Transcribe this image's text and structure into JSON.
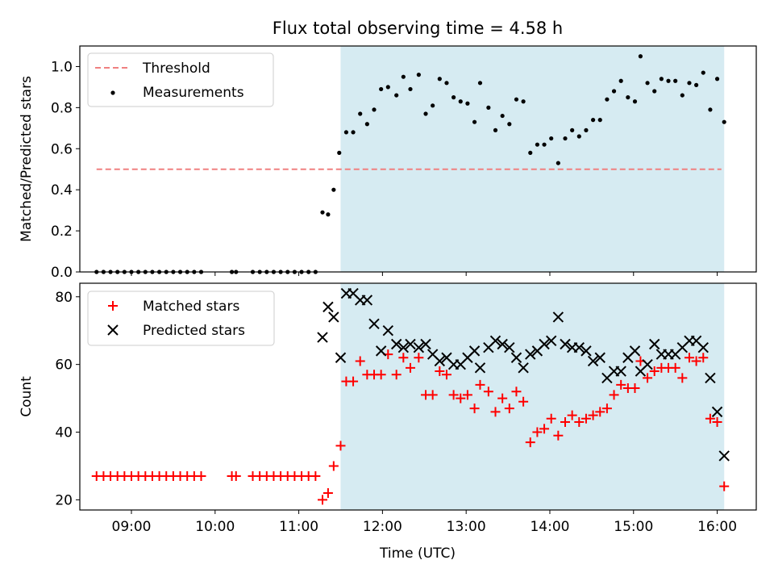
{
  "chart_data": {
    "title": "Flux total observing time = 4.58 h",
    "observing_band": {
      "start": "11:30",
      "end": "16:05",
      "color": "#add8e6"
    },
    "x_axis": {
      "label": "Time (UTC)",
      "range": [
        "08:23",
        "16:28"
      ],
      "ticks": [
        "09:00",
        "10:00",
        "11:00",
        "12:00",
        "13:00",
        "14:00",
        "15:00",
        "16:00"
      ]
    },
    "panels": [
      {
        "type": "scatter",
        "ylabel": "Matched/Predicted stars",
        "ylim": [
          0,
          1.1
        ],
        "yticks": [
          "0.0",
          "0.2",
          "0.4",
          "0.6",
          "0.8",
          "1.0"
        ],
        "legend_position": "upper-left",
        "threshold": {
          "name": "Threshold",
          "value": 0.5,
          "x_from": "08:35",
          "x_to": "16:03",
          "color": "#f08080",
          "style": "dashed"
        },
        "series": [
          {
            "name": "Measurements",
            "marker": "dot",
            "color": "#000000",
            "points": [
              [
                "08:35",
                0
              ],
              [
                "08:40",
                0
              ],
              [
                "08:45",
                0
              ],
              [
                "08:50",
                0
              ],
              [
                "08:55",
                0
              ],
              [
                "09:00",
                0
              ],
              [
                "09:05",
                0
              ],
              [
                "09:10",
                0
              ],
              [
                "09:15",
                0
              ],
              [
                "09:20",
                0
              ],
              [
                "09:25",
                0
              ],
              [
                "09:30",
                0
              ],
              [
                "09:35",
                0
              ],
              [
                "09:40",
                0
              ],
              [
                "09:45",
                0
              ],
              [
                "09:50",
                0
              ],
              [
                "10:12",
                0
              ],
              [
                "10:15",
                0
              ],
              [
                "10:27",
                0
              ],
              [
                "10:32",
                0
              ],
              [
                "10:37",
                0
              ],
              [
                "10:42",
                0
              ],
              [
                "10:47",
                0
              ],
              [
                "10:52",
                0
              ],
              [
                "10:57",
                0
              ],
              [
                "11:02",
                0
              ],
              [
                "11:07",
                0
              ],
              [
                "11:12",
                0
              ],
              [
                "11:17",
                0.29
              ],
              [
                "11:21",
                0.28
              ],
              [
                "11:25",
                0.4
              ],
              [
                "11:29",
                0.58
              ],
              [
                "11:34",
                0.68
              ],
              [
                "11:39",
                0.68
              ],
              [
                "11:44",
                0.77
              ],
              [
                "11:49",
                0.72
              ],
              [
                "11:54",
                0.79
              ],
              [
                "11:59",
                0.89
              ],
              [
                "12:04",
                0.9
              ],
              [
                "12:10",
                0.86
              ],
              [
                "12:15",
                0.95
              ],
              [
                "12:20",
                0.89
              ],
              [
                "12:26",
                0.96
              ],
              [
                "12:31",
                0.77
              ],
              [
                "12:36",
                0.81
              ],
              [
                "12:41",
                0.94
              ],
              [
                "12:46",
                0.92
              ],
              [
                "12:51",
                0.85
              ],
              [
                "12:56",
                0.83
              ],
              [
                "13:01",
                0.82
              ],
              [
                "13:06",
                0.73
              ],
              [
                "13:10",
                0.92
              ],
              [
                "13:16",
                0.8
              ],
              [
                "13:21",
                0.69
              ],
              [
                "13:26",
                0.76
              ],
              [
                "13:31",
                0.72
              ],
              [
                "13:36",
                0.84
              ],
              [
                "13:41",
                0.83
              ],
              [
                "13:46",
                0.58
              ],
              [
                "13:51",
                0.62
              ],
              [
                "13:56",
                0.62
              ],
              [
                "14:01",
                0.65
              ],
              [
                "14:06",
                0.53
              ],
              [
                "14:11",
                0.65
              ],
              [
                "14:16",
                0.69
              ],
              [
                "14:21",
                0.66
              ],
              [
                "14:26",
                0.69
              ],
              [
                "14:31",
                0.74
              ],
              [
                "14:36",
                0.74
              ],
              [
                "14:41",
                0.84
              ],
              [
                "14:46",
                0.88
              ],
              [
                "14:51",
                0.93
              ],
              [
                "14:56",
                0.85
              ],
              [
                "15:01",
                0.83
              ],
              [
                "15:05",
                1.05
              ],
              [
                "15:10",
                0.92
              ],
              [
                "15:15",
                0.88
              ],
              [
                "15:20",
                0.94
              ],
              [
                "15:25",
                0.93
              ],
              [
                "15:30",
                0.93
              ],
              [
                "15:35",
                0.86
              ],
              [
                "15:40",
                0.92
              ],
              [
                "15:45",
                0.91
              ],
              [
                "15:50",
                0.97
              ],
              [
                "15:55",
                0.79
              ],
              [
                "16:00",
                0.94
              ],
              [
                "16:05",
                0.73
              ]
            ]
          }
        ]
      },
      {
        "type": "scatter",
        "ylabel": "Count",
        "ylim": [
          17,
          84
        ],
        "yticks": [
          "20",
          "40",
          "60",
          "80"
        ],
        "legend_position": "upper-left",
        "series": [
          {
            "name": "Matched stars",
            "marker": "plus",
            "color": "#ff0000",
            "points": [
              [
                "08:35",
                27
              ],
              [
                "08:40",
                27
              ],
              [
                "08:45",
                27
              ],
              [
                "08:50",
                27
              ],
              [
                "08:55",
                27
              ],
              [
                "09:00",
                27
              ],
              [
                "09:05",
                27
              ],
              [
                "09:10",
                27
              ],
              [
                "09:15",
                27
              ],
              [
                "09:20",
                27
              ],
              [
                "09:25",
                27
              ],
              [
                "09:30",
                27
              ],
              [
                "09:35",
                27
              ],
              [
                "09:40",
                27
              ],
              [
                "09:45",
                27
              ],
              [
                "09:50",
                27
              ],
              [
                "10:12",
                27
              ],
              [
                "10:15",
                27
              ],
              [
                "10:27",
                27
              ],
              [
                "10:32",
                27
              ],
              [
                "10:37",
                27
              ],
              [
                "10:42",
                27
              ],
              [
                "10:47",
                27
              ],
              [
                "10:52",
                27
              ],
              [
                "10:57",
                27
              ],
              [
                "11:02",
                27
              ],
              [
                "11:07",
                27
              ],
              [
                "11:12",
                27
              ],
              [
                "11:17",
                20
              ],
              [
                "11:21",
                22
              ],
              [
                "11:25",
                30
              ],
              [
                "11:30",
                36
              ],
              [
                "11:34",
                55
              ],
              [
                "11:39",
                55
              ],
              [
                "11:44",
                61
              ],
              [
                "11:49",
                57
              ],
              [
                "11:54",
                57
              ],
              [
                "11:59",
                57
              ],
              [
                "12:04",
                63
              ],
              [
                "12:10",
                57
              ],
              [
                "12:15",
                62
              ],
              [
                "12:20",
                59
              ],
              [
                "12:26",
                62
              ],
              [
                "12:31",
                51
              ],
              [
                "12:36",
                51
              ],
              [
                "12:41",
                58
              ],
              [
                "12:46",
                57
              ],
              [
                "12:51",
                51
              ],
              [
                "12:56",
                50
              ],
              [
                "13:01",
                51
              ],
              [
                "13:06",
                47
              ],
              [
                "13:10",
                54
              ],
              [
                "13:16",
                52
              ],
              [
                "13:21",
                46
              ],
              [
                "13:26",
                50
              ],
              [
                "13:31",
                47
              ],
              [
                "13:36",
                52
              ],
              [
                "13:41",
                49
              ],
              [
                "13:46",
                37
              ],
              [
                "13:51",
                40
              ],
              [
                "13:56",
                41
              ],
              [
                "14:01",
                44
              ],
              [
                "14:06",
                39
              ],
              [
                "14:11",
                43
              ],
              [
                "14:16",
                45
              ],
              [
                "14:21",
                43
              ],
              [
                "14:26",
                44
              ],
              [
                "14:31",
                45
              ],
              [
                "14:36",
                46
              ],
              [
                "14:41",
                47
              ],
              [
                "14:46",
                51
              ],
              [
                "14:51",
                54
              ],
              [
                "14:56",
                53
              ],
              [
                "15:01",
                53
              ],
              [
                "15:05",
                61
              ],
              [
                "15:10",
                56
              ],
              [
                "15:15",
                58
              ],
              [
                "15:20",
                59
              ],
              [
                "15:25",
                59
              ],
              [
                "15:30",
                59
              ],
              [
                "15:35",
                56
              ],
              [
                "15:40",
                62
              ],
              [
                "15:45",
                61
              ],
              [
                "15:50",
                62
              ],
              [
                "15:55",
                44
              ],
              [
                "16:00",
                43
              ],
              [
                "16:05",
                24
              ]
            ]
          },
          {
            "name": "Predicted stars",
            "marker": "x",
            "color": "#000000",
            "points": [
              [
                "11:17",
                68
              ],
              [
                "11:21",
                77
              ],
              [
                "11:25",
                74
              ],
              [
                "11:30",
                62
              ],
              [
                "11:34",
                81
              ],
              [
                "11:39",
                81
              ],
              [
                "11:44",
                79
              ],
              [
                "11:49",
                79
              ],
              [
                "11:54",
                72
              ],
              [
                "11:59",
                64
              ],
              [
                "12:04",
                70
              ],
              [
                "12:10",
                66
              ],
              [
                "12:15",
                65
              ],
              [
                "12:20",
                66
              ],
              [
                "12:26",
                65
              ],
              [
                "12:31",
                66
              ],
              [
                "12:36",
                63
              ],
              [
                "12:41",
                61
              ],
              [
                "12:46",
                62
              ],
              [
                "12:51",
                60
              ],
              [
                "12:56",
                60
              ],
              [
                "13:01",
                62
              ],
              [
                "13:06",
                64
              ],
              [
                "13:10",
                59
              ],
              [
                "13:16",
                65
              ],
              [
                "13:21",
                67
              ],
              [
                "13:26",
                66
              ],
              [
                "13:31",
                65
              ],
              [
                "13:36",
                62
              ],
              [
                "13:41",
                59
              ],
              [
                "13:46",
                63
              ],
              [
                "13:51",
                64
              ],
              [
                "13:56",
                66
              ],
              [
                "14:01",
                67
              ],
              [
                "14:06",
                74
              ],
              [
                "14:11",
                66
              ],
              [
                "14:16",
                65
              ],
              [
                "14:21",
                65
              ],
              [
                "14:26",
                64
              ],
              [
                "14:31",
                61
              ],
              [
                "14:36",
                62
              ],
              [
                "14:41",
                56
              ],
              [
                "14:46",
                58
              ],
              [
                "14:51",
                58
              ],
              [
                "14:56",
                62
              ],
              [
                "15:01",
                64
              ],
              [
                "15:05",
                58
              ],
              [
                "15:10",
                60
              ],
              [
                "15:15",
                66
              ],
              [
                "15:20",
                63
              ],
              [
                "15:25",
                63
              ],
              [
                "15:30",
                63
              ],
              [
                "15:35",
                65
              ],
              [
                "15:40",
                67
              ],
              [
                "15:45",
                67
              ],
              [
                "15:50",
                65
              ],
              [
                "15:55",
                56
              ],
              [
                "16:00",
                46
              ],
              [
                "16:05",
                33
              ]
            ]
          }
        ]
      }
    ]
  }
}
